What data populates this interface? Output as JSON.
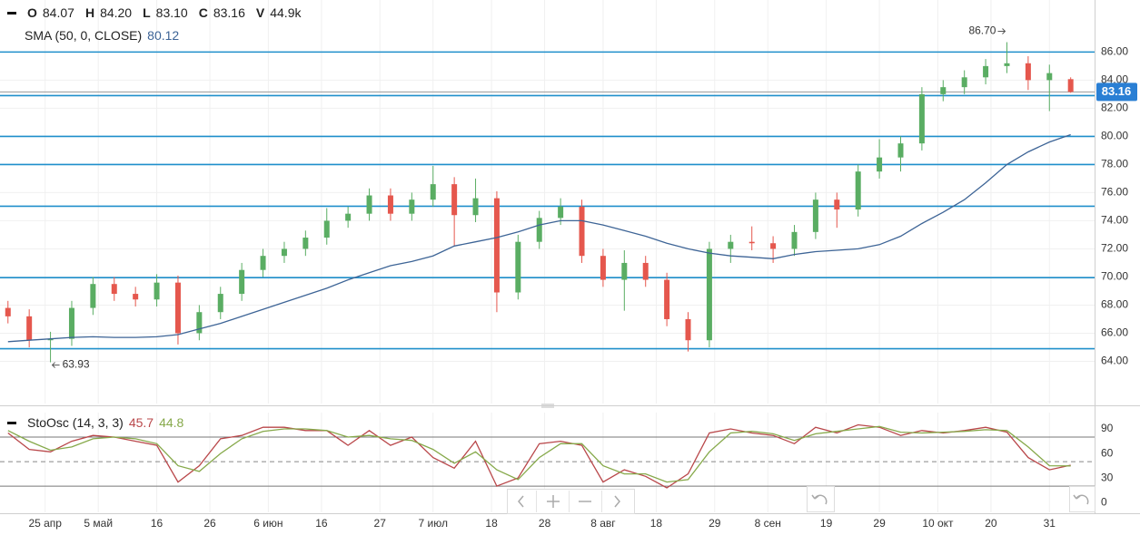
{
  "chart_data": {
    "type": "candlestick",
    "header": {
      "items": [
        {
          "key": "O",
          "value": "84.07"
        },
        {
          "key": "H",
          "value": "84.20"
        },
        {
          "key": "L",
          "value": "83.10"
        },
        {
          "key": "C",
          "value": "83.16"
        },
        {
          "key": "V",
          "value": "44.9k"
        }
      ]
    },
    "sma": {
      "name": "SMA (50, 0, CLOSE)",
      "value_label": "80.12",
      "color": "#3d6496",
      "values": [
        65.4,
        65.5,
        65.6,
        65.7,
        65.75,
        65.7,
        65.7,
        65.75,
        65.9,
        66.3,
        66.7,
        67.2,
        67.7,
        68.2,
        68.7,
        69.2,
        69.8,
        70.3,
        70.8,
        71.1,
        71.5,
        72.2,
        72.5,
        72.8,
        73.2,
        73.7,
        74.0,
        74.0,
        73.7,
        73.3,
        72.9,
        72.4,
        72.0,
        71.7,
        71.5,
        71.4,
        71.3,
        71.6,
        71.8,
        71.9,
        72.0,
        72.3,
        72.9,
        73.8,
        74.6,
        75.5,
        76.7,
        78.0,
        78.9,
        79.6,
        80.12
      ]
    },
    "x": [
      -7,
      -3,
      1,
      5,
      9,
      13,
      17,
      21,
      25,
      29,
      33,
      37,
      41,
      45,
      49,
      53,
      57,
      61,
      65,
      69,
      73,
      77,
      81,
      85,
      89,
      93,
      97,
      101,
      105,
      109,
      113,
      117,
      121,
      125,
      129,
      133,
      137,
      141,
      145,
      149,
      153,
      157,
      161,
      165,
      169,
      173,
      177,
      181,
      185,
      189,
      193
    ],
    "open": [
      67.8,
      67.2,
      65.5,
      65.6,
      67.8,
      69.5,
      68.8,
      68.4,
      69.6,
      66.0,
      67.5,
      68.8,
      70.5,
      71.5,
      72.0,
      72.8,
      74.0,
      74.5,
      75.8,
      74.5,
      75.5,
      76.6,
      74.4,
      75.6,
      68.9,
      72.5,
      74.2,
      75.0,
      71.5,
      69.8,
      71.0,
      69.8,
      67.0,
      65.5,
      72.0,
      72.5,
      72.4,
      72.0,
      73.2,
      75.5,
      74.8,
      77.5,
      78.5,
      79.5,
      83.0,
      83.5,
      84.2,
      85.0,
      85.2,
      84.0,
      84.07
    ],
    "high": [
      68.3,
      67.7,
      66.1,
      68.3,
      70.0,
      70.0,
      69.3,
      70.2,
      70.1,
      68.0,
      69.3,
      71.0,
      72.0,
      72.5,
      73.3,
      74.9,
      75.0,
      76.3,
      76.3,
      76.0,
      77.9,
      77.1,
      77.0,
      76.1,
      73.0,
      74.7,
      75.6,
      75.5,
      72.0,
      71.9,
      71.5,
      70.3,
      67.5,
      72.5,
      73.0,
      73.6,
      72.9,
      73.7,
      76.0,
      76.0,
      78.0,
      79.8,
      80.0,
      83.5,
      84.0,
      84.7,
      85.5,
      86.7,
      85.7,
      85.1,
      84.2
    ],
    "low": [
      66.7,
      65.0,
      63.93,
      65.1,
      67.3,
      68.3,
      67.9,
      67.9,
      65.2,
      65.5,
      67.0,
      68.3,
      70.0,
      71.0,
      71.5,
      72.3,
      73.5,
      74.0,
      74.0,
      74.0,
      75.0,
      72.2,
      73.9,
      67.5,
      68.4,
      72.0,
      73.7,
      71.0,
      69.3,
      67.6,
      69.3,
      66.5,
      64.7,
      65.0,
      71.0,
      71.9,
      71.0,
      71.5,
      72.7,
      73.5,
      74.3,
      77.0,
      77.5,
      79.0,
      82.5,
      83.0,
      83.7,
      84.5,
      83.3,
      81.8,
      83.1
    ],
    "close": [
      67.2,
      65.5,
      65.6,
      67.8,
      69.5,
      68.8,
      68.4,
      69.6,
      66.0,
      67.5,
      68.8,
      70.5,
      71.5,
      72.0,
      72.8,
      74.0,
      74.5,
      75.8,
      74.5,
      75.5,
      76.6,
      74.4,
      75.6,
      68.9,
      72.5,
      74.2,
      75.0,
      71.5,
      69.8,
      71.0,
      69.8,
      67.0,
      65.5,
      72.0,
      72.5,
      72.4,
      72.0,
      73.2,
      75.5,
      74.8,
      77.5,
      78.5,
      79.5,
      83.0,
      83.5,
      84.2,
      85.0,
      85.2,
      84.0,
      84.5,
      83.16
    ],
    "up_color": "#5aad63",
    "down_color": "#e5574d",
    "xlim": [
      -8.5,
      197.5
    ],
    "xticks": [
      {
        "value": 0,
        "label": "25 апр"
      },
      {
        "value": 10,
        "label": "5 май"
      },
      {
        "value": 21,
        "label": "16"
      },
      {
        "value": 31,
        "label": "26"
      },
      {
        "value": 42,
        "label": "6 июн"
      },
      {
        "value": 52,
        "label": "16"
      },
      {
        "value": 63,
        "label": "27"
      },
      {
        "value": 73,
        "label": "7 июл"
      },
      {
        "value": 84,
        "label": "18"
      },
      {
        "value": 94,
        "label": "28"
      },
      {
        "value": 105,
        "label": "8 авг"
      },
      {
        "value": 115,
        "label": "18"
      },
      {
        "value": 126,
        "label": "29"
      },
      {
        "value": 136,
        "label": "8 сен"
      },
      {
        "value": 147,
        "label": "19"
      },
      {
        "value": 157,
        "label": "29"
      },
      {
        "value": 168,
        "label": "10 окт"
      },
      {
        "value": 178,
        "label": "20"
      },
      {
        "value": 189,
        "label": "31"
      }
    ],
    "ylim": [
      61,
      89.7
    ],
    "yticks": [
      {
        "value": 64,
        "label": "64.00"
      },
      {
        "value": 66,
        "label": "66.00"
      },
      {
        "value": 68,
        "label": "68.00"
      },
      {
        "value": 70,
        "label": "70.00"
      },
      {
        "value": 72,
        "label": "72.00"
      },
      {
        "value": 74,
        "label": "74.00"
      },
      {
        "value": 76,
        "label": "76.00"
      },
      {
        "value": 78,
        "label": "78.00"
      },
      {
        "value": 80,
        "label": "80.00"
      },
      {
        "value": 82,
        "label": "82.00"
      },
      {
        "value": 84,
        "label": "84.00"
      },
      {
        "value": 86,
        "label": "86.00"
      }
    ],
    "grid": true,
    "levels": {
      "color": "#1f8fcb",
      "values": [
        86.0,
        82.9,
        80.0,
        78.0,
        75.03,
        69.95,
        64.9
      ]
    },
    "max_label": "86.70",
    "min_label": "63.93",
    "oscillator": {
      "type": "line",
      "name": "StoOsc (14, 3, 3)",
      "ylim": [
        -12,
        110
      ],
      "yticks": [
        0,
        30,
        60,
        90
      ],
      "bands": [
        80,
        20
      ],
      "midline": 50,
      "series": [
        {
          "name": "45.7",
          "color": "#b9474a",
          "values": [
            85,
            65,
            62,
            75,
            82,
            80,
            75,
            70,
            25,
            45,
            78,
            82,
            92,
            92,
            88,
            88,
            70,
            88,
            70,
            80,
            55,
            42,
            75,
            20,
            30,
            72,
            75,
            70,
            25,
            40,
            32,
            18,
            35,
            85,
            90,
            85,
            82,
            72,
            92,
            85,
            95,
            92,
            82,
            88,
            85,
            88,
            92,
            86,
            55,
            40,
            45.7
          ]
        },
        {
          "name": "44.8",
          "color": "#86a94a",
          "values": [
            88,
            75,
            64,
            68,
            78,
            80,
            78,
            72,
            45,
            38,
            60,
            78,
            87,
            90,
            90,
            88,
            80,
            82,
            78,
            76,
            65,
            48,
            62,
            40,
            28,
            55,
            72,
            72,
            45,
            35,
            35,
            25,
            28,
            62,
            85,
            87,
            84,
            76,
            84,
            87,
            90,
            93,
            86,
            85,
            86,
            87,
            89,
            88,
            68,
            45,
            44.8
          ]
        }
      ]
    }
  }
}
